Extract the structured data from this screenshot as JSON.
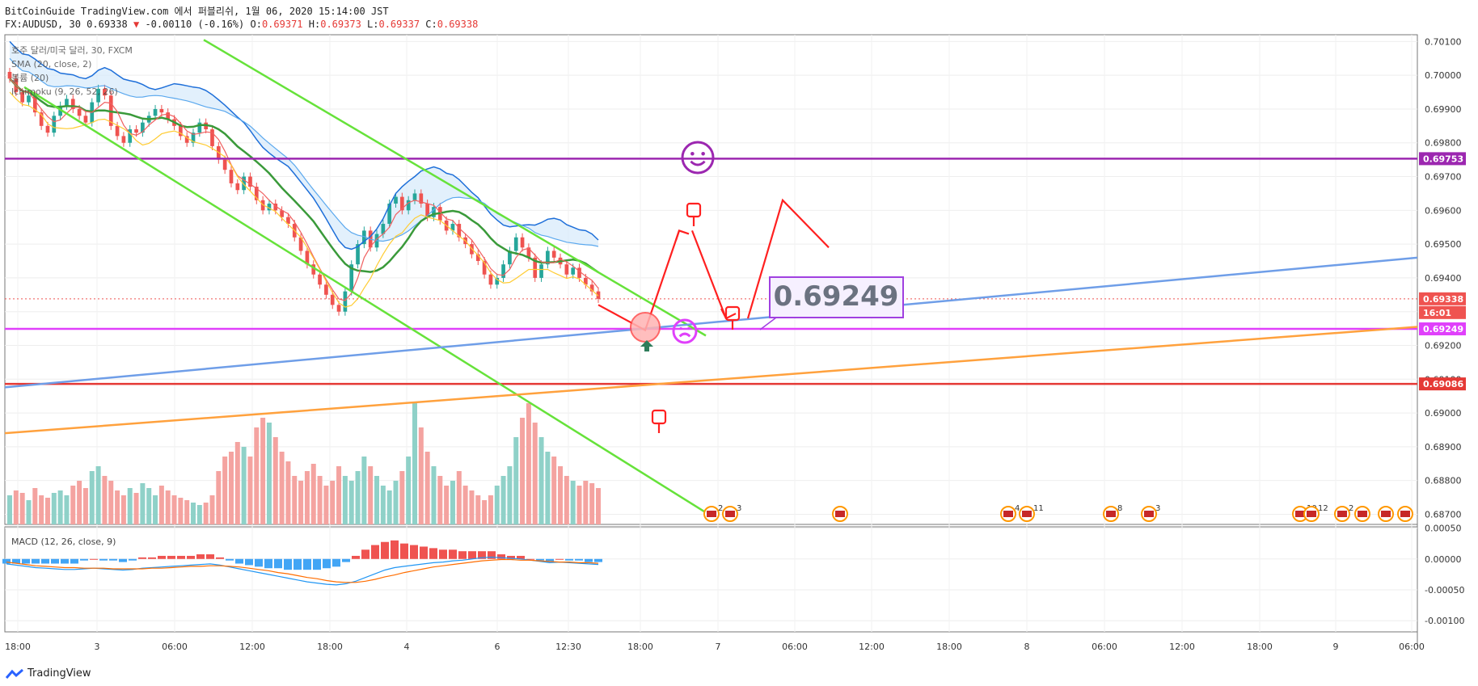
{
  "header": {
    "publisher_line": "BitCoinGuide TradingView.com 에서 퍼블리쉬, 1월 06, 2020 15:14:00 JST",
    "symbol": "FX:AUDUSD, 30",
    "last": "0.69338",
    "arrow": "▼",
    "change": "-0.00110 (-0.16%)",
    "o_label": "O:",
    "o_value": "0.69371",
    "h_label": "H:",
    "h_value": "0.69373",
    "l_label": "L:",
    "l_value": "0.69337",
    "c_label": "C:",
    "c_value": "0.69338"
  },
  "legend": {
    "title": "호주 달러/미국 달러, 30, FXCM",
    "sma": "SMA (20, close, 2)",
    "bollinger": "볼륨 (20)",
    "ichimoku": "Ichimoku (9, 26, 52, 26)",
    "macd": "MACD (12, 26, close, 9)"
  },
  "callout": "0.69249",
  "footer": {
    "brand": "TradingView"
  },
  "colors": {
    "up": "#26a69a",
    "down": "#ef5350",
    "purple": "#9c27b0",
    "magenta": "#e040fb",
    "red_level": "#e53935",
    "green_channel": "#66e23a",
    "blue_trend": "#6f9ee8",
    "orange_trend": "#ffa13d"
  },
  "chart_data": {
    "type": "candlestick",
    "symbol": "FX:AUDUSD",
    "timeframe": "30",
    "y_range": [
      0.6867,
      0.7012
    ],
    "y_ticks": [
      "0.70100",
      "0.70000",
      "0.69900",
      "0.69800",
      "0.69700",
      "0.69600",
      "0.69500",
      "0.69400",
      "0.69300",
      "0.69200",
      "0.69100",
      "0.69000",
      "0.68900",
      "0.68800",
      "0.68700"
    ],
    "x_ticks": [
      "18:00",
      "3",
      "06:00",
      "12:00",
      "18:00",
      "4",
      "6",
      "12:30",
      "18:00",
      "7",
      "06:00",
      "12:00",
      "18:00",
      "8",
      "06:00",
      "12:00",
      "18:00",
      "9",
      "06:00"
    ],
    "price_labels": [
      {
        "value": "0.69753",
        "color": "#9c27b0"
      },
      {
        "value": "0.69338",
        "color": "#ef5350"
      },
      {
        "value": "16:01",
        "color": "#ef5350"
      },
      {
        "value": "0.69249",
        "color": "#e040fb"
      },
      {
        "value": "0.69086",
        "color": "#e53935"
      }
    ],
    "horizontal_levels": [
      0.69753,
      0.69249,
      0.69086
    ],
    "closes": [
      0.6999,
      0.6995,
      0.6992,
      0.6994,
      0.6989,
      0.6985,
      0.6983,
      0.6988,
      0.6991,
      0.6993,
      0.699,
      0.6988,
      0.6986,
      0.6992,
      0.6996,
      0.6994,
      0.6985,
      0.6982,
      0.698,
      0.6984,
      0.6983,
      0.6986,
      0.6988,
      0.699,
      0.6989,
      0.6987,
      0.6985,
      0.6982,
      0.698,
      0.6983,
      0.6986,
      0.6984,
      0.6979,
      0.6975,
      0.6972,
      0.6968,
      0.6966,
      0.697,
      0.6967,
      0.6963,
      0.696,
      0.6962,
      0.696,
      0.6958,
      0.6956,
      0.6952,
      0.6948,
      0.6944,
      0.6941,
      0.6938,
      0.6935,
      0.6932,
      0.693,
      0.6936,
      0.6944,
      0.695,
      0.6954,
      0.6949,
      0.6953,
      0.6956,
      0.6962,
      0.6964,
      0.696,
      0.6963,
      0.6965,
      0.6962,
      0.6958,
      0.6961,
      0.6957,
      0.6954,
      0.6956,
      0.6952,
      0.695,
      0.6947,
      0.6945,
      0.6941,
      0.6938,
      0.694,
      0.6944,
      0.6948,
      0.6952,
      0.6949,
      0.6946,
      0.694,
      0.6944,
      0.6948,
      0.6946,
      0.6944,
      0.6941,
      0.6943,
      0.694,
      0.6938,
      0.6936,
      0.69338
    ],
    "series": [
      {
        "name": "Volume",
        "values": [
          12,
          14,
          13,
          10,
          15,
          12,
          11,
          13,
          14,
          12,
          16,
          18,
          15,
          22,
          24,
          20,
          18,
          14,
          12,
          15,
          13,
          17,
          15,
          12,
          16,
          14,
          12,
          11,
          10,
          9,
          8,
          9,
          12,
          22,
          28,
          30,
          34,
          32,
          28,
          40,
          44,
          42,
          36,
          30,
          26,
          20,
          18,
          22,
          25,
          20,
          16,
          18,
          24,
          20,
          18,
          22,
          28,
          24,
          20,
          16,
          14,
          18,
          22,
          28,
          50,
          40,
          30,
          24,
          20,
          16,
          18,
          22,
          16,
          14,
          12,
          10,
          12,
          16,
          20,
          24,
          36,
          44,
          50,
          42,
          36,
          30,
          28,
          24,
          20,
          18,
          16,
          18,
          17,
          15
        ]
      },
      {
        "name": "MACD",
        "values": [
          -8e-05,
          -0.0001,
          -0.00012,
          -0.00014,
          -0.00015,
          -0.00016,
          -0.00017,
          -0.00017,
          -0.00016,
          -0.00015,
          -0.00016,
          -0.00017,
          -0.00018,
          -0.00017,
          -0.00015,
          -0.00014,
          -0.00013,
          -0.00012,
          -0.00011,
          -0.0001,
          -9e-05,
          -8e-05,
          -0.0001,
          -0.00013,
          -0.00016,
          -0.00019,
          -0.00022,
          -0.00025,
          -0.00028,
          -0.00031,
          -0.00034,
          -0.00037,
          -0.00039,
          -0.00041,
          -0.00042,
          -0.0004,
          -0.00036,
          -0.0003,
          -0.00024,
          -0.00018,
          -0.00014,
          -0.00012,
          -0.0001,
          -8e-05,
          -6e-05,
          -5e-05,
          -3e-05,
          -2e-05,
          0.0,
          2e-05,
          3e-05,
          2e-05,
          1e-05,
          0.0,
          -2e-05,
          -4e-05,
          -6e-05,
          -5e-05,
          -6e-05,
          -7e-05,
          -8e-05,
          -9e-05
        ]
      },
      {
        "name": "Signal",
        "values": [
          -5e-05,
          -7e-05,
          -9e-05,
          -0.00011,
          -0.00012,
          -0.00013,
          -0.00014,
          -0.00014,
          -0.00015,
          -0.00015,
          -0.00015,
          -0.00016,
          -0.00016,
          -0.00016,
          -0.00016,
          -0.00015,
          -0.00015,
          -0.00014,
          -0.00013,
          -0.00012,
          -0.00012,
          -0.00011,
          -0.00011,
          -0.00012,
          -0.00013,
          -0.00015,
          -0.00017,
          -0.00019,
          -0.00022,
          -0.00024,
          -0.00027,
          -0.0003,
          -0.00032,
          -0.00035,
          -0.00037,
          -0.00038,
          -0.00038,
          -0.00036,
          -0.00033,
          -0.00029,
          -0.00026,
          -0.00022,
          -0.00019,
          -0.00016,
          -0.00013,
          -0.00011,
          -9e-05,
          -7e-05,
          -5e-05,
          -3e-05,
          -2e-05,
          -1e-05,
          -1e-05,
          -2e-05,
          -2e-05,
          -3e-05,
          -4e-05,
          -5e-05,
          -5e-05,
          -6e-05,
          -6e-05,
          -7e-05
        ]
      }
    ],
    "macd_y_ticks": [
      "0.00050",
      "0.00000",
      "-0.00050",
      "-0.00100"
    ],
    "macd_range": [
      -0.00118,
      0.00052
    ],
    "event_badges": [
      "2",
      "3",
      "",
      "4",
      "11",
      "8",
      "3",
      "10",
      "12",
      "2"
    ]
  }
}
